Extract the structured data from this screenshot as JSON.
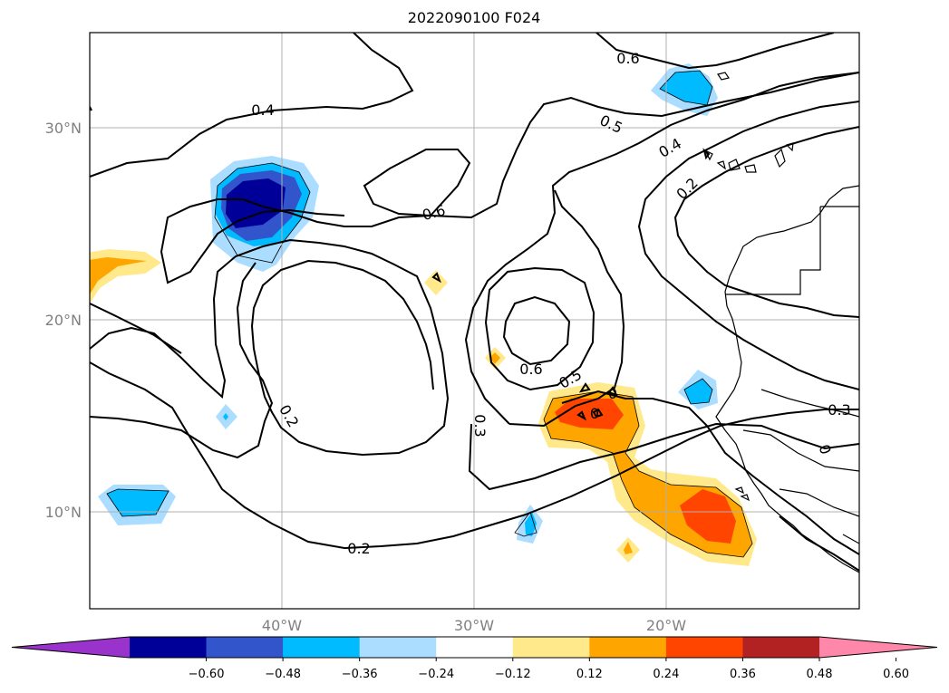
{
  "title": "2022090100 F024",
  "map": {
    "lat_labels": [
      "30°N",
      "20°N",
      "10°N"
    ],
    "lon_labels": [
      "40°W",
      "30°W",
      "20°W"
    ],
    "grid": true,
    "contour_labels": [
      "0.4",
      "0.6",
      "0.5",
      "0.4",
      "0.2",
      "0.6",
      "0.6",
      "0.5",
      "0",
      "0",
      "0.2",
      "0.3",
      "0.2",
      "0.3",
      "0"
    ]
  },
  "colorbar": {
    "extend": "both",
    "colors": [
      "#9933cc",
      "#000099",
      "#3355cc",
      "#00bbff",
      "#aaddff",
      "#ffffff",
      "#ffe98a",
      "#ffa500",
      "#ff4500",
      "#b22222",
      "#ff88aa"
    ],
    "tick_labels": [
      "−0.60",
      "−0.48",
      "−0.36",
      "−0.24",
      "−0.12",
      "0.12",
      "0.24",
      "0.36",
      "0.48",
      "0.60"
    ]
  }
}
